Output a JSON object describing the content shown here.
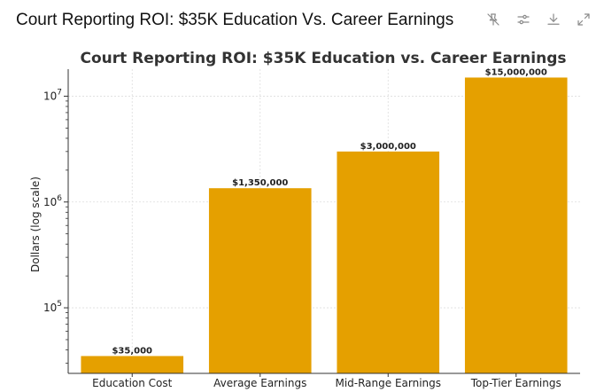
{
  "window": {
    "title": "Court Reporting ROI: $35K Education Vs. Career Earnings"
  },
  "toolbar": {
    "icons": [
      "pin-off-icon",
      "sliders-icon",
      "download-icon",
      "expand-icon"
    ]
  },
  "colors": {
    "bar": "#E5A000",
    "grid": "#dddddd",
    "axis": "#333333"
  },
  "chart_data": {
    "type": "bar",
    "title": "Court Reporting ROI: $35K Education vs. Career Earnings",
    "xlabel": "",
    "ylabel": "Dollars (log scale)",
    "yscale": "log",
    "ylim": [
      24000,
      18000000
    ],
    "grid": true,
    "categories": [
      "Education Cost",
      "Average Earnings",
      "Mid-Range Earnings",
      "Top-Tier Earnings"
    ],
    "values": [
      35000,
      1350000,
      3000000,
      15000000
    ],
    "data_labels": [
      "$35,000",
      "$1,350,000",
      "$3,000,000",
      "$15,000,000"
    ],
    "yticks": [
      {
        "value": 100000,
        "base": "10",
        "exp": "5"
      },
      {
        "value": 1000000,
        "base": "10",
        "exp": "6"
      },
      {
        "value": 10000000,
        "base": "10",
        "exp": "7"
      }
    ]
  }
}
